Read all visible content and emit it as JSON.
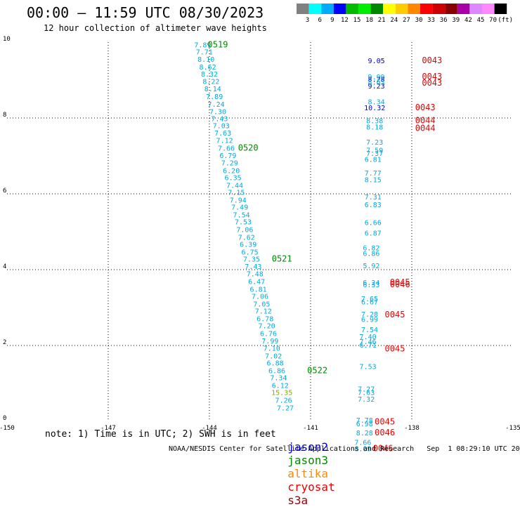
{
  "header": {
    "title": "00:00 – 11:59 UTC 08/30/2023",
    "subtitle": "12 hour collection of altimeter wave heights"
  },
  "footer": {
    "note": "note: 1) Time is in UTC; 2) SWH is in feet",
    "credit": "NOAA/NESDIS Center for Satellite Applications and Research   Sep  1 08:29:10 UTC 2023"
  },
  "satellites": [
    {
      "name": "jason2",
      "color": "#0000ee"
    },
    {
      "name": "jason3",
      "color": "#008800"
    },
    {
      "name": "altika",
      "color": "#ff8800"
    },
    {
      "name": "cryosat",
      "color": "#ee0000"
    },
    {
      "name": "s3a",
      "color": "#990000"
    }
  ],
  "colorbar": {
    "labels": [
      "3",
      "6",
      "9",
      "12",
      "15",
      "18",
      "21",
      "24",
      "27",
      "30",
      "33",
      "36",
      "39",
      "42",
      "45",
      "70",
      "(ft)"
    ],
    "colors": [
      "#808080",
      "#00ffff",
      "#00aaff",
      "#0000ff",
      "#00bb00",
      "#00ee00",
      "#008800",
      "#ffff00",
      "#ffcc00",
      "#ff8800",
      "#ff0000",
      "#cc0000",
      "#880000",
      "#aa00aa",
      "#dd88ff",
      "#ff88ff",
      "#000000"
    ]
  },
  "chart_data": {
    "type": "scatter",
    "xlim": [
      -150,
      -135
    ],
    "ylim": [
      0,
      10
    ],
    "xticks": [
      "-150",
      "-147",
      "-144",
      "-141",
      "-138",
      "-135"
    ],
    "yticks": [
      "0",
      "2",
      "4",
      "6",
      "8",
      "10"
    ],
    "grid": true,
    "tracks": [
      {
        "color": "#00aadd",
        "points": [
          {
            "x": -144.2,
            "y": 9.86,
            "v": "7.89"
          },
          {
            "x": -144.15,
            "y": 9.68,
            "v": "7.71"
          },
          {
            "x": -144.1,
            "y": 9.48,
            "v": "8.10"
          },
          {
            "x": -144.05,
            "y": 9.28,
            "v": "8.62"
          },
          {
            "x": -144.0,
            "y": 9.09,
            "v": "8.32"
          },
          {
            "x": -143.95,
            "y": 8.9,
            "v": "8.22"
          },
          {
            "x": -143.9,
            "y": 8.7,
            "v": "8.14"
          },
          {
            "x": -143.85,
            "y": 8.5,
            "v": "7.89"
          },
          {
            "x": -143.8,
            "y": 8.3,
            "v": "7.24"
          },
          {
            "x": -143.75,
            "y": 8.1,
            "v": "7.30"
          },
          {
            "x": -143.7,
            "y": 7.92,
            "v": "7.43"
          },
          {
            "x": -143.65,
            "y": 7.73,
            "v": "7.03"
          },
          {
            "x": -143.6,
            "y": 7.54,
            "v": "7.63"
          },
          {
            "x": -143.55,
            "y": 7.34,
            "v": "7.12"
          },
          {
            "x": -143.5,
            "y": 7.14,
            "v": "7.66"
          },
          {
            "x": -143.45,
            "y": 6.94,
            "v": "6.79"
          },
          {
            "x": -143.4,
            "y": 6.75,
            "v": "7.29"
          },
          {
            "x": -143.35,
            "y": 6.55,
            "v": "6.20"
          },
          {
            "x": -143.3,
            "y": 6.36,
            "v": "6.35"
          },
          {
            "x": -143.25,
            "y": 6.16,
            "v": "7.44"
          },
          {
            "x": -143.2,
            "y": 5.97,
            "v": "7.15"
          },
          {
            "x": -143.15,
            "y": 5.77,
            "v": "7.94"
          },
          {
            "x": -143.1,
            "y": 5.58,
            "v": "7.49"
          },
          {
            "x": -143.05,
            "y": 5.38,
            "v": "7.54"
          },
          {
            "x": -143.0,
            "y": 5.19,
            "v": "7.53"
          },
          {
            "x": -142.95,
            "y": 4.99,
            "v": "7.06"
          },
          {
            "x": -142.9,
            "y": 4.79,
            "v": "7.62"
          },
          {
            "x": -142.85,
            "y": 4.6,
            "v": "6.39"
          },
          {
            "x": -142.8,
            "y": 4.4,
            "v": "6.75"
          },
          {
            "x": -142.75,
            "y": 4.21,
            "v": "7.35"
          },
          {
            "x": -142.7,
            "y": 4.02,
            "v": "7.43"
          },
          {
            "x": -142.65,
            "y": 3.82,
            "v": "7.48"
          },
          {
            "x": -142.6,
            "y": 3.62,
            "v": "6.47"
          },
          {
            "x": -142.55,
            "y": 3.42,
            "v": "6.81"
          },
          {
            "x": -142.5,
            "y": 3.23,
            "v": "7.06"
          },
          {
            "x": -142.45,
            "y": 3.03,
            "v": "7.05"
          },
          {
            "x": -142.4,
            "y": 2.84,
            "v": "7.12"
          },
          {
            "x": -142.35,
            "y": 2.64,
            "v": "6.78"
          },
          {
            "x": -142.3,
            "y": 2.45,
            "v": "7.20"
          },
          {
            "x": -142.25,
            "y": 2.25,
            "v": "6.76"
          },
          {
            "x": -142.2,
            "y": 2.06,
            "v": "7.99"
          },
          {
            "x": -142.15,
            "y": 1.86,
            "v": "7.10"
          },
          {
            "x": -142.1,
            "y": 1.66,
            "v": "7.02"
          },
          {
            "x": -142.05,
            "y": 1.47,
            "v": "6.88"
          },
          {
            "x": -142.0,
            "y": 1.27,
            "v": "6.86"
          },
          {
            "x": -141.95,
            "y": 1.08,
            "v": "7.34"
          },
          {
            "x": -141.9,
            "y": 0.88,
            "v": "6.12"
          },
          {
            "x": -141.85,
            "y": 0.69,
            "v": "15.35",
            "color": "#88aa00"
          },
          {
            "x": -141.8,
            "y": 0.49,
            "v": "7.26"
          },
          {
            "x": -141.75,
            "y": 0.29,
            "v": "7.27"
          }
        ],
        "time_labels": [
          {
            "x": -143.75,
            "y": 9.86,
            "text": "0519",
            "color": "#008800"
          },
          {
            "x": -142.85,
            "y": 7.14,
            "text": "0520",
            "color": "#008800"
          },
          {
            "x": -141.85,
            "y": 4.21,
            "text": "0521",
            "color": "#008800"
          },
          {
            "x": -140.8,
            "y": 1.27,
            "text": "0522",
            "color": "#008800"
          }
        ]
      },
      {
        "color": "#00aadd",
        "points": [
          {
            "x": -139.05,
            "y": 9.44,
            "v": "9.05",
            "color": "#0000cc"
          },
          {
            "x": -139.05,
            "y": 9.02,
            "v": "9.99",
            "color": "#00aadd"
          },
          {
            "x": -139.05,
            "y": 8.95,
            "v": "8.28",
            "color": "#0000cc"
          },
          {
            "x": -139.05,
            "y": 8.88,
            "v": "8.63",
            "color": "#00aadd"
          },
          {
            "x": -139.05,
            "y": 8.78,
            "v": "9.23",
            "color": "#0000cc"
          },
          {
            "x": -139.05,
            "y": 8.36,
            "v": "8.34"
          },
          {
            "x": -139.1,
            "y": 8.2,
            "v": "10.32",
            "color": "#0000cc"
          },
          {
            "x": -139.1,
            "y": 7.86,
            "v": "8.38"
          },
          {
            "x": -139.1,
            "y": 7.69,
            "v": "8.18"
          },
          {
            "x": -139.1,
            "y": 7.3,
            "v": "7.23"
          },
          {
            "x": -139.1,
            "y": 7.08,
            "v": "7.59"
          },
          {
            "x": -139.1,
            "y": 7.0,
            "v": "7.37"
          },
          {
            "x": -139.15,
            "y": 6.84,
            "v": "6.81"
          },
          {
            "x": -139.15,
            "y": 6.48,
            "v": "7.77"
          },
          {
            "x": -139.15,
            "y": 6.31,
            "v": "8.15"
          },
          {
            "x": -139.15,
            "y": 5.85,
            "v": "7.31"
          },
          {
            "x": -139.15,
            "y": 5.65,
            "v": "6.83"
          },
          {
            "x": -139.15,
            "y": 5.18,
            "v": "6.66"
          },
          {
            "x": -139.15,
            "y": 4.9,
            "v": "6.87"
          },
          {
            "x": -139.2,
            "y": 4.51,
            "v": "6.82"
          },
          {
            "x": -139.2,
            "y": 4.36,
            "v": "6.86"
          },
          {
            "x": -139.2,
            "y": 4.04,
            "v": "5.92"
          },
          {
            "x": -139.2,
            "y": 3.59,
            "v": "6.24"
          },
          {
            "x": -139.2,
            "y": 3.54,
            "v": "6.33"
          },
          {
            "x": -139.25,
            "y": 3.17,
            "v": "7.65"
          },
          {
            "x": -139.25,
            "y": 3.08,
            "v": "6.67"
          },
          {
            "x": -139.25,
            "y": 2.76,
            "v": "7.28"
          },
          {
            "x": -139.25,
            "y": 2.62,
            "v": "6.99"
          },
          {
            "x": -139.25,
            "y": 2.35,
            "v": "7.54"
          },
          {
            "x": -139.3,
            "y": 2.17,
            "v": "7.40"
          },
          {
            "x": -139.3,
            "y": 2.04,
            "v": "7.46"
          },
          {
            "x": -139.3,
            "y": 1.94,
            "v": "6.71"
          },
          {
            "x": -139.3,
            "y": 1.38,
            "v": "7.53"
          },
          {
            "x": -139.35,
            "y": 0.79,
            "v": "7.27"
          },
          {
            "x": -139.35,
            "y": 0.69,
            "v": "7.63"
          },
          {
            "x": -139.35,
            "y": 0.52,
            "v": "7.32"
          },
          {
            "x": -139.4,
            "y": -0.04,
            "v": "7.78"
          },
          {
            "x": -139.4,
            "y": -0.13,
            "v": "6.98"
          },
          {
            "x": -139.4,
            "y": -0.37,
            "v": "8.28"
          },
          {
            "x": -139.45,
            "y": -0.62,
            "v": "7.66"
          },
          {
            "x": -139.45,
            "y": -0.79,
            "v": "8.09"
          }
        ],
        "time_labels": [
          {
            "x": -137.4,
            "y": 9.44,
            "text": "0043",
            "color": "#ee0000"
          },
          {
            "x": -137.4,
            "y": 9.02,
            "text": "0043",
            "color": "#ee0000"
          },
          {
            "x": -137.4,
            "y": 8.85,
            "text": "0043",
            "color": "#ee0000"
          },
          {
            "x": -137.6,
            "y": 8.2,
            "text": "0043",
            "color": "#ee0000"
          },
          {
            "x": -137.6,
            "y": 7.86,
            "text": "0044",
            "color": "#ee0000"
          },
          {
            "x": -137.6,
            "y": 7.66,
            "text": "0044",
            "color": "#ee0000"
          },
          {
            "x": -138.35,
            "y": 3.59,
            "text": "0045",
            "color": "#ee0000"
          },
          {
            "x": -138.35,
            "y": 3.54,
            "text": "0046",
            "color": "#ee0000"
          },
          {
            "x": -138.5,
            "y": 2.74,
            "text": "0045",
            "color": "#ee0000"
          },
          {
            "x": -138.5,
            "y": 1.84,
            "text": "0045",
            "color": "#ee0000"
          },
          {
            "x": -138.8,
            "y": -0.08,
            "text": "0045",
            "color": "#ee0000"
          },
          {
            "x": -138.8,
            "y": -0.37,
            "text": "0046",
            "color": "#ee0000"
          },
          {
            "x": -138.85,
            "y": -0.79,
            "text": "0046",
            "color": "#ee0000"
          }
        ]
      }
    ]
  }
}
